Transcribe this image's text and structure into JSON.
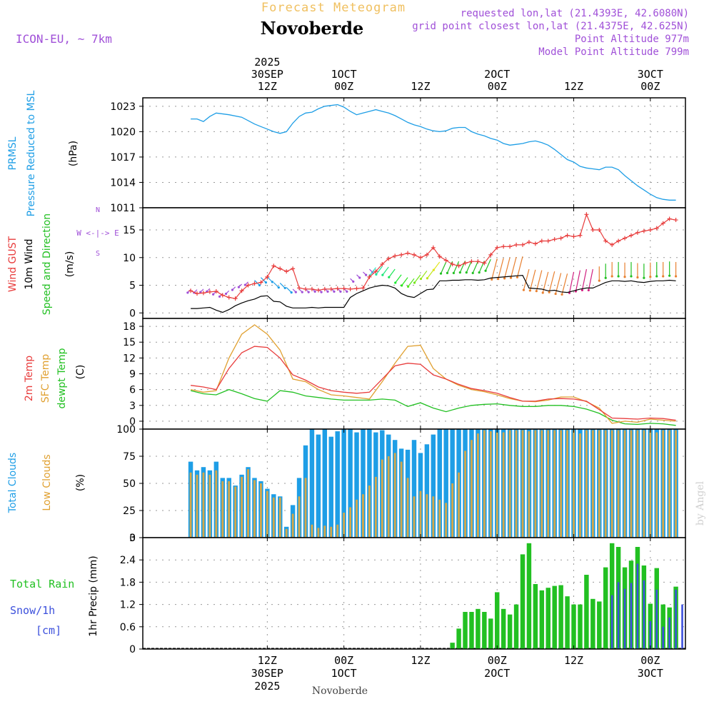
{
  "header": {
    "title": "Forecast Meteogram",
    "location": "Novoberde",
    "model": "ICON-EU, ~ 7km",
    "requested": "requested lon,lat (21.4393E, 42.6080N)",
    "gridpoint": "grid point closest lon,lat (21.4375E, 42.625N)",
    "point_alt": "Point Altitude 977m",
    "model_alt": "Model Point Altitude 799m",
    "footer": "Novoberde",
    "watermark": "by Angel"
  },
  "time_axis": {
    "top_ticks": [
      {
        "h": 12,
        "l1": "2025",
        "l2": "30SEP",
        "l3": "12Z"
      },
      {
        "h": 24,
        "l1": "",
        "l2": "1OCT",
        "l3": "00Z"
      },
      {
        "h": 36,
        "l1": "",
        "l2": "",
        "l3": "12Z"
      },
      {
        "h": 48,
        "l1": "",
        "l2": "2OCT",
        "l3": "00Z"
      },
      {
        "h": 60,
        "l1": "",
        "l2": "",
        "l3": "12Z"
      },
      {
        "h": 72,
        "l1": "",
        "l2": "3OCT",
        "l3": "00Z"
      }
    ],
    "bottom_ticks": [
      {
        "h": 12,
        "l1": "12Z",
        "l2": "30SEP",
        "l3": "2025"
      },
      {
        "h": 24,
        "l1": "00Z",
        "l2": "1OCT",
        "l3": ""
      },
      {
        "h": 36,
        "l1": "12Z",
        "l2": "",
        "l3": ""
      },
      {
        "h": 48,
        "l1": "00Z",
        "l2": "2OCT",
        "l3": ""
      },
      {
        "h": 60,
        "l1": "12Z",
        "l2": "",
        "l3": ""
      },
      {
        "h": 72,
        "l1": "00Z",
        "l2": "3OCT",
        "l3": ""
      }
    ]
  },
  "colors": {
    "pressure": "#1e9ee6",
    "gust": "#e83c3c",
    "wind": "#000000",
    "green": "#22c022",
    "temp2m": "#e83c3c",
    "sfc": "#e0a030",
    "dewpt": "#22c022",
    "totalcloud": "#1e9ee6",
    "lowcloud": "#d4a84a",
    "rain": "#22c022",
    "snow": "#3c50dc",
    "purple": "#a050d8",
    "title": "#f0c060"
  },
  "chart_data": [
    {
      "type": "line",
      "name": "pressure",
      "labels": [
        "PRMSL",
        "Pressure Reduced to MSL",
        "(hPa)"
      ],
      "ylim": [
        1011,
        1024
      ],
      "yticks": [
        1011,
        1014,
        1017,
        1020,
        1023
      ],
      "x": [
        0,
        1,
        2,
        3,
        4,
        6,
        8,
        10,
        11,
        12,
        13,
        14,
        15,
        16,
        17,
        18,
        19,
        20,
        21,
        22,
        23,
        24,
        25,
        26,
        27,
        28,
        29,
        30,
        31,
        32,
        33,
        34,
        35,
        36,
        37,
        38,
        39,
        40,
        41,
        42,
        43,
        44,
        45,
        46,
        47,
        48,
        49,
        50,
        51,
        52,
        53,
        54,
        55,
        56,
        57,
        58,
        59,
        60,
        61,
        62,
        63,
        64,
        65,
        66,
        67,
        68,
        69,
        70,
        71,
        72,
        73,
        74,
        75,
        76
      ],
      "values": [
        1021.5,
        1021.5,
        1021.2,
        1021.8,
        1022.2,
        1022.0,
        1021.7,
        1020.9,
        1020.6,
        1020.3,
        1020.0,
        1019.8,
        1020.0,
        1021.0,
        1021.8,
        1022.2,
        1022.3,
        1022.7,
        1023.0,
        1023.1,
        1023.2,
        1022.9,
        1022.4,
        1022.0,
        1022.2,
        1022.4,
        1022.6,
        1022.4,
        1022.2,
        1021.9,
        1021.5,
        1021.1,
        1020.8,
        1020.6,
        1020.3,
        1020.1,
        1020.0,
        1020.1,
        1020.4,
        1020.5,
        1020.5,
        1020.0,
        1019.7,
        1019.5,
        1019.2,
        1019.0,
        1018.6,
        1018.4,
        1018.5,
        1018.6,
        1018.8,
        1018.9,
        1018.7,
        1018.4,
        1017.9,
        1017.3,
        1016.7,
        1016.4,
        1015.9,
        1015.7,
        1015.6,
        1015.5,
        1015.8,
        1015.8,
        1015.5,
        1014.8,
        1014.2,
        1013.6,
        1013.1,
        1012.6,
        1012.2,
        1012.0,
        1011.9,
        1011.9
      ]
    },
    {
      "type": "line",
      "name": "wind",
      "labels": [
        "Wind GUST",
        "10m Wind",
        "Speed and Direction",
        "(m/s)"
      ],
      "compass": "W <-|-> E",
      "compass_ns": [
        "N",
        "S"
      ],
      "ylim": [
        -1,
        19
      ],
      "yticks": [
        0,
        5,
        10,
        15
      ],
      "x": [
        0,
        1,
        2,
        3,
        4,
        5,
        6,
        7,
        8,
        9,
        10,
        11,
        12,
        13,
        14,
        15,
        16,
        17,
        18,
        19,
        20,
        21,
        22,
        23,
        24,
        25,
        26,
        27,
        28,
        29,
        30,
        31,
        32,
        33,
        34,
        35,
        36,
        37,
        38,
        39,
        40,
        41,
        42,
        43,
        44,
        45,
        46,
        47,
        48,
        49,
        50,
        51,
        52,
        53,
        54,
        55,
        56,
        57,
        58,
        59,
        60,
        61,
        62,
        63,
        64,
        65,
        66,
        67,
        68,
        69,
        70,
        71,
        72,
        73,
        74,
        75,
        76
      ],
      "gust": [
        4,
        3.5,
        3.6,
        3.8,
        3.9,
        3.2,
        2.8,
        2.6,
        4,
        5,
        5.3,
        5.5,
        6.5,
        8.5,
        8,
        7.5,
        8,
        4.5,
        4.3,
        4.3,
        4.1,
        4.3,
        4.3,
        4.4,
        4.4,
        4.3,
        4.4,
        4.5,
        6.5,
        7.5,
        8.8,
        9.8,
        10.3,
        10.5,
        10.8,
        10.5,
        10,
        10.5,
        11.8,
        10.2,
        9.5,
        8.8,
        8.5,
        9,
        9.3,
        9.3,
        9,
        10.5,
        11.8,
        12,
        12,
        12.3,
        12.3,
        12.8,
        12.5,
        13,
        13,
        13.3,
        13.5,
        14,
        13.8,
        14,
        17.8,
        15,
        15,
        13,
        12.3,
        13,
        13.5,
        14,
        14.5,
        14.8,
        15,
        15.3,
        16.2,
        17,
        16.8
      ],
      "speed": [
        0.8,
        0.8,
        0.9,
        1.0,
        0.5,
        0.1,
        0.6,
        1.3,
        1.8,
        2.2,
        2.5,
        3.0,
        3.1,
        2.1,
        2.0,
        1.2,
        0.9,
        0.9,
        0.9,
        1.0,
        0.9,
        1.0,
        1.0,
        1.0,
        1.0,
        2.8,
        3.5,
        4.0,
        4.5,
        4.8,
        5.0,
        4.9,
        4.5,
        3.5,
        3.0,
        2.8,
        3.5,
        4.2,
        4.3,
        5.8,
        5.8,
        5.9,
        5.9,
        6.0,
        6.0,
        5.9,
        6.0,
        6.3,
        6.4,
        6.5,
        6.6,
        6.7,
        6.8,
        4.5,
        4.4,
        4.3,
        4.0,
        4.1,
        3.8,
        3.7,
        4.0,
        4.3,
        4.5,
        4.5,
        5.0,
        5.5,
        5.8,
        5.8,
        5.7,
        5.8,
        5.6,
        5.5,
        5.7,
        5.8,
        5.8,
        5.9,
        5.8
      ],
      "gust_color": "#e83c3c",
      "speed_color": "#000000"
    },
    {
      "type": "line",
      "name": "temperature",
      "labels": [
        "2m Temp",
        "SFC Temp",
        "dewpt Temp",
        "(C)"
      ],
      "ylim": [
        -1.5,
        19.5
      ],
      "yticks": [
        0,
        3,
        6,
        9,
        12,
        15,
        18
      ],
      "x": [
        0,
        2,
        4,
        6,
        8,
        10,
        12,
        14,
        16,
        18,
        20,
        22,
        24,
        26,
        28,
        30,
        32,
        34,
        36,
        38,
        40,
        42,
        44,
        46,
        48,
        50,
        52,
        54,
        56,
        58,
        60,
        62,
        64,
        66,
        68,
        70,
        72,
        74,
        76
      ],
      "t2m": [
        6.8,
        6.5,
        6.0,
        10.0,
        13.0,
        14.2,
        14.0,
        12.0,
        8.8,
        7.8,
        6.5,
        5.8,
        5.5,
        5.3,
        5.5,
        8.0,
        10.5,
        11.0,
        10.8,
        8.8,
        8.0,
        7.0,
        6.2,
        5.8,
        5.3,
        4.5,
        3.8,
        3.8,
        4.2,
        4.3,
        4.2,
        3.8,
        2.2,
        0.6,
        0.5,
        0.4,
        0.6,
        0.5,
        0.2
      ],
      "sfc": [
        6.0,
        5.5,
        5.8,
        12.0,
        16.5,
        18.3,
        16.5,
        13.5,
        8.0,
        7.5,
        6.0,
        5.0,
        4.8,
        4.5,
        4.2,
        7.5,
        11.0,
        14.2,
        14.4,
        10.0,
        8.0,
        6.8,
        6.0,
        5.6,
        5.0,
        4.3,
        3.8,
        3.7,
        4.0,
        4.6,
        4.6,
        3.7,
        2.5,
        -0.4,
        0.0,
        -0.2,
        0.4,
        0.2,
        0.0
      ],
      "dewpt": [
        5.8,
        5.2,
        5.0,
        6.0,
        5.2,
        4.3,
        3.8,
        5.8,
        5.5,
        4.8,
        4.5,
        4.2,
        4.0,
        4.0,
        4.0,
        4.2,
        4.0,
        2.8,
        3.5,
        2.5,
        1.8,
        2.5,
        3.0,
        3.2,
        3.3,
        3.0,
        2.8,
        2.8,
        3.0,
        3.0,
        2.8,
        2.3,
        1.5,
        0.2,
        -0.5,
        -0.6,
        -0.4,
        -0.5,
        -0.8
      ]
    },
    {
      "type": "bar",
      "name": "clouds",
      "labels": [
        "Total Clouds",
        "Low Clouds",
        "(%)"
      ],
      "ylim": [
        0,
        100
      ],
      "yticks": [
        0,
        25,
        50,
        75,
        100
      ],
      "x": [
        0,
        1,
        2,
        3,
        4,
        5,
        6,
        7,
        8,
        9,
        10,
        11,
        12,
        13,
        14,
        15,
        16,
        17,
        18,
        19,
        20,
        21,
        22,
        23,
        24,
        25,
        26,
        27,
        28,
        29,
        30,
        31,
        32,
        33,
        34,
        35,
        36,
        37,
        38,
        39,
        40,
        41,
        42,
        43,
        44,
        45,
        46,
        47,
        48,
        49,
        50,
        51,
        52,
        53,
        54,
        55,
        56,
        57,
        58,
        59,
        60,
        61,
        62,
        63,
        64,
        65,
        66,
        67,
        68,
        69,
        70,
        71,
        72,
        73,
        74,
        75,
        76
      ],
      "total": [
        70,
        62,
        65,
        62,
        70,
        55,
        55,
        48,
        58,
        65,
        55,
        52,
        45,
        40,
        38,
        10,
        30,
        55,
        85,
        100,
        95,
        100,
        93,
        98,
        100,
        100,
        97,
        100,
        100,
        97,
        99,
        95,
        90,
        82,
        81,
        90,
        78,
        86,
        95,
        100,
        100,
        100,
        100,
        100,
        100,
        100,
        100,
        100,
        100,
        100,
        100,
        100,
        100,
        100,
        100,
        100,
        100,
        100,
        100,
        100,
        100,
        100,
        100,
        100,
        100,
        100,
        100,
        100,
        100,
        100,
        100,
        100,
        100,
        100,
        100,
        100,
        100
      ],
      "low": [
        60,
        58,
        60,
        58,
        62,
        52,
        52,
        47,
        56,
        63,
        53,
        50,
        43,
        37,
        37,
        8,
        22,
        38,
        55,
        12,
        9,
        11,
        10,
        12,
        23,
        28,
        35,
        40,
        48,
        56,
        72,
        75,
        78,
        70,
        55,
        38,
        43,
        40,
        38,
        35,
        32,
        50,
        60,
        80,
        90,
        96,
        99,
        98,
        97,
        97,
        99,
        99,
        99,
        98,
        99,
        99,
        99,
        99,
        99,
        99,
        99,
        96,
        99,
        99,
        99,
        99,
        99,
        99,
        99,
        99,
        99,
        99,
        99,
        97,
        99,
        99,
        99
      ]
    },
    {
      "type": "bar",
      "name": "precipitation",
      "labels": [
        "Total  Rain",
        "Snow/1h",
        "[cm]",
        "1hr Precip (mm)"
      ],
      "ylim": [
        0,
        3
      ],
      "yticks": [
        0,
        0.6,
        1.2,
        1.8,
        2.4,
        3
      ],
      "x": [
        41,
        42,
        43,
        44,
        45,
        46,
        47,
        48,
        49,
        50,
        51,
        52,
        53,
        54,
        55,
        56,
        57,
        58,
        59,
        60,
        61,
        62,
        63,
        64,
        65,
        66,
        67,
        68,
        69,
        70,
        71,
        72,
        73,
        74,
        75,
        76
      ],
      "rain": [
        0.17,
        0.55,
        1.0,
        1.0,
        1.08,
        1.0,
        0.82,
        1.53,
        1.08,
        0.93,
        1.2,
        2.55,
        2.85,
        1.75,
        1.58,
        1.65,
        1.7,
        1.72,
        1.42,
        1.2,
        1.2,
        2.0,
        1.35,
        1.28,
        2.2,
        2.85,
        2.75,
        2.2,
        2.38,
        2.75,
        2.25,
        1.22,
        2.18,
        1.2,
        1.12,
        1.68
      ],
      "snow": [
        0,
        0,
        0,
        0,
        0,
        0,
        0,
        0,
        0,
        0,
        0,
        0,
        0,
        0,
        0,
        0,
        0,
        0,
        0,
        0,
        0,
        0,
        0,
        0,
        0,
        1.45,
        1.8,
        1.62,
        1.78,
        2.3,
        1.85,
        0.75,
        1.6,
        0.6,
        0.85,
        1.6
      ],
      "extra_snow_x": 77,
      "extra_snow": 1.2
    }
  ]
}
